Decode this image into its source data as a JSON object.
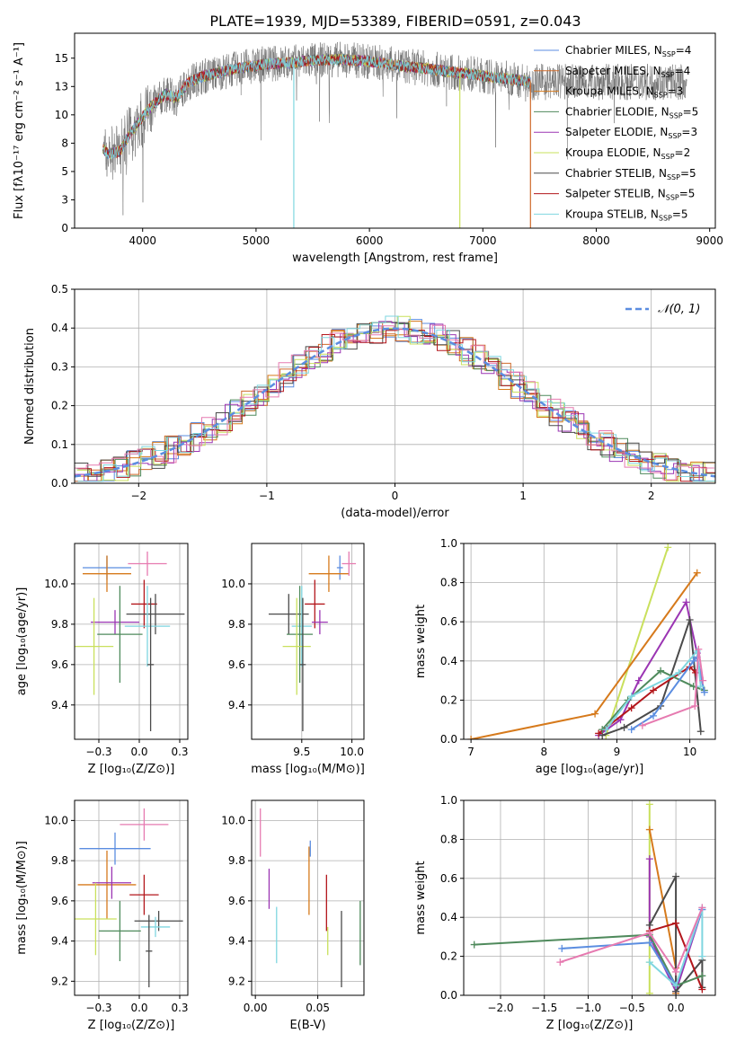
{
  "title": "PLATE=1939, MJD=53389, FIBERID=0591, z=0.043",
  "colors": {
    "Chabrier MILES": "#5b8de0",
    "Salpeter MILES": "#cf6a2a",
    "Kroupa MILES": "#d67a1c",
    "Chabrier ELODIE": "#4f8a5c",
    "Salpeter ELODIE": "#9b35b3",
    "Kroupa ELODIE": "#c9e05c",
    "Chabrier STELIB": "#4a4a4a",
    "Salpeter STELIB": "#b3161b",
    "Kroupa STELIB": "#7fd6e0",
    "pink": "#e67ab0",
    "gaussian": "#5b8de0"
  },
  "chart_data": [
    {
      "id": "spectrum",
      "type": "line",
      "xlabel": "wavelength [Angstrom, rest frame]",
      "ylabel": "Flux [fλ10⁻¹⁷ erg cm⁻² s⁻¹ A⁻¹]",
      "xlim": [
        3400,
        9050
      ],
      "ylim": [
        0,
        17.2
      ],
      "xticks": [
        4000,
        5000,
        6000,
        7000,
        8000,
        9000
      ],
      "yticks": [
        0.0,
        2.5,
        5.0,
        7.5,
        10.0,
        12.5,
        15.0
      ],
      "legend_position": "top-right",
      "legend": [
        {
          "label": "Chabrier MILES, N",
          "sub": "SSP",
          "tail": "=4",
          "color": "#5b8de0"
        },
        {
          "label": "Salpeter MILES, N",
          "sub": "SSP",
          "tail": "=4",
          "color": "#cf6a2a"
        },
        {
          "label": "Kroupa MILES, N",
          "sub": "SSP",
          "tail": "=3",
          "color": "#d67a1c"
        },
        {
          "label": "Chabrier ELODIE, N",
          "sub": "SSP",
          "tail": "=5",
          "color": "#4f8a5c"
        },
        {
          "label": "Salpeter ELODIE, N",
          "sub": "SSP",
          "tail": "=3",
          "color": "#9b35b3"
        },
        {
          "label": "Kroupa ELODIE, N",
          "sub": "SSP",
          "tail": "=2",
          "color": "#c9e05c"
        },
        {
          "label": "Chabrier STELIB, N",
          "sub": "SSP",
          "tail": "=5",
          "color": "#4a4a4a"
        },
        {
          "label": "Salpeter STELIB, N",
          "sub": "SSP",
          "tail": "=5",
          "color": "#b3161b"
        },
        {
          "label": "Kroupa STELIB, N",
          "sub": "SSP",
          "tail": "=5",
          "color": "#7fd6e0"
        }
      ],
      "continuum": {
        "x": [
          3650,
          3700,
          3800,
          3900,
          4000,
          4100,
          4200,
          4300,
          4400,
          4500,
          4700,
          4900,
          5100,
          5300,
          5500,
          5700,
          5900,
          6100,
          6300,
          6500,
          6700,
          6900,
          7100,
          7300,
          7420
        ],
        "y": [
          7.0,
          6.5,
          6.8,
          8.5,
          9.8,
          11.0,
          11.8,
          11.5,
          12.8,
          13.3,
          13.8,
          14.2,
          14.5,
          14.6,
          14.8,
          14.9,
          14.8,
          14.6,
          14.3,
          14.1,
          13.8,
          13.6,
          13.3,
          13.1,
          12.9
        ]
      },
      "data_range": [
        3650,
        8800
      ],
      "model_range": [
        3650,
        7420
      ],
      "spikes": [
        {
          "x": 5333,
          "color": "#7fd6e0",
          "ymin": 0
        },
        {
          "x": 6797,
          "color": "#c9e05c",
          "ymin": 0
        },
        {
          "x": 7420,
          "color": "#cf6a2a",
          "ymin": 0
        }
      ]
    },
    {
      "id": "residuals",
      "type": "histogram",
      "xlabel": "(data-model)/error",
      "ylabel": "Normed distribution",
      "xlim": [
        -2.5,
        2.5
      ],
      "ylim": [
        0,
        0.5
      ],
      "xticks": [
        -2,
        -1,
        0,
        1,
        2
      ],
      "yticks": [
        0.0,
        0.1,
        0.2,
        0.3,
        0.4,
        0.5
      ],
      "bins": 50,
      "gaussian": {
        "label": "𝒩(0, 1)",
        "mu": 0,
        "sigma": 1
      },
      "legend_position": "top-right"
    },
    {
      "id": "age-vs-Z",
      "type": "errorbar",
      "xlabel": "Z [log₁₀(Z/Z⊙)]",
      "ylabel": "age  [log₁₀(age/yr)]",
      "xlim": [
        -0.4,
        0.3
      ],
      "ylim": [
        9.23,
        10.2
      ],
      "xticks": [
        -0.25,
        0.0,
        0.25
      ],
      "yticks": [
        9.4,
        9.6,
        9.8,
        10.0
      ],
      "points": [
        {
          "x": -0.2,
          "y": 10.08,
          "xerr": 0.15,
          "yerr": 0.06,
          "color": "#5b8de0"
        },
        {
          "x": -0.2,
          "y": 10.05,
          "xerr": 0.15,
          "yerr": 0.09,
          "color": "#d67a1c"
        },
        {
          "x": 0.05,
          "y": 10.1,
          "xerr": 0.12,
          "yerr": 0.06,
          "color": "#e67ab0"
        },
        {
          "x": 0.03,
          "y": 9.9,
          "xerr": 0.08,
          "yerr": 0.12,
          "color": "#b3161b"
        },
        {
          "x": 0.1,
          "y": 9.85,
          "xerr": 0.18,
          "yerr": 0.1,
          "color": "#4a4a4a"
        },
        {
          "x": -0.15,
          "y": 9.81,
          "xerr": 0.15,
          "yerr": 0.06,
          "color": "#9b35b3"
        },
        {
          "x": 0.05,
          "y": 9.79,
          "xerr": 0.14,
          "yerr": 0.2,
          "color": "#7fd6e0"
        },
        {
          "x": -0.12,
          "y": 9.75,
          "xerr": 0.14,
          "yerr": 0.24,
          "color": "#4f8a5c"
        },
        {
          "x": -0.28,
          "y": 9.69,
          "xerr": 0.12,
          "yerr": 0.24,
          "color": "#c9e05c"
        },
        {
          "x": 0.07,
          "y": 9.6,
          "xerr": 0.02,
          "yerr": 0.33,
          "color": "#4a4a4a"
        }
      ]
    },
    {
      "id": "age-vs-mass",
      "type": "errorbar",
      "xlabel": "mass [log₁₀(M/M⊙)]",
      "xlim": [
        9.0,
        10.12
      ],
      "ylim": [
        9.23,
        10.2
      ],
      "xticks": [
        9.5,
        10.0
      ],
      "yticks": [
        9.4,
        9.6,
        9.8,
        10.0
      ],
      "points": [
        {
          "x": 9.88,
          "y": 10.08,
          "xerr": 0.03,
          "yerr": 0.06,
          "color": "#5b8de0"
        },
        {
          "x": 9.77,
          "y": 10.05,
          "xerr": 0.2,
          "yerr": 0.09,
          "color": "#d67a1c"
        },
        {
          "x": 9.97,
          "y": 10.1,
          "xerr": 0.07,
          "yerr": 0.06,
          "color": "#e67ab0"
        },
        {
          "x": 9.63,
          "y": 9.9,
          "xerr": 0.1,
          "yerr": 0.12,
          "color": "#b3161b"
        },
        {
          "x": 9.37,
          "y": 9.85,
          "xerr": 0.2,
          "yerr": 0.1,
          "color": "#4a4a4a"
        },
        {
          "x": 9.68,
          "y": 9.81,
          "xerr": 0.08,
          "yerr": 0.06,
          "color": "#9b35b3"
        },
        {
          "x": 9.5,
          "y": 9.79,
          "xerr": 0.1,
          "yerr": 0.2,
          "color": "#7fd6e0"
        },
        {
          "x": 9.48,
          "y": 9.75,
          "xerr": 0.13,
          "yerr": 0.24,
          "color": "#4f8a5c"
        },
        {
          "x": 9.45,
          "y": 9.69,
          "xerr": 0.14,
          "yerr": 0.24,
          "color": "#c9e05c"
        },
        {
          "x": 9.51,
          "y": 9.6,
          "xerr": 0.03,
          "yerr": 0.33,
          "color": "#4a4a4a"
        }
      ]
    },
    {
      "id": "weight-vs-age",
      "type": "line",
      "xlabel": "age  [log₁₀(age/yr)]",
      "ylabel": "mass weight",
      "xlim": [
        6.9,
        10.35
      ],
      "ylim": [
        0,
        1
      ],
      "xticks": [
        7,
        8,
        9,
        10
      ],
      "yticks": [
        0.0,
        0.2,
        0.4,
        0.6,
        0.8,
        1.0
      ],
      "series": [
        {
          "color": "#c9e05c",
          "x": [
            8.85,
            9.7
          ],
          "y": [
            0.02,
            0.98
          ]
        },
        {
          "color": "#d67a1c",
          "x": [
            7.0,
            8.7,
            10.1
          ],
          "y": [
            0.0,
            0.13,
            0.85
          ]
        },
        {
          "color": "#9b35b3",
          "x": [
            8.75,
            9.05,
            9.3,
            9.95,
            10.1
          ],
          "y": [
            0.02,
            0.1,
            0.3,
            0.7,
            0.44
          ]
        },
        {
          "color": "#4a4a4a",
          "x": [
            8.8,
            9.1,
            9.6,
            10.0,
            10.15
          ],
          "y": [
            0.02,
            0.06,
            0.17,
            0.61,
            0.04
          ]
        },
        {
          "color": "#b3161b",
          "x": [
            8.75,
            9.2,
            9.5,
            10.0,
            10.08
          ],
          "y": [
            0.03,
            0.16,
            0.25,
            0.37,
            0.34
          ]
        },
        {
          "color": "#4f8a5c",
          "x": [
            8.8,
            9.15,
            9.6,
            10.05,
            10.2
          ],
          "y": [
            0.05,
            0.2,
            0.35,
            0.27,
            0.25
          ]
        },
        {
          "color": "#5b8de0",
          "x": [
            9.2,
            9.5,
            10.05,
            10.1,
            10.2
          ],
          "y": [
            0.05,
            0.12,
            0.4,
            0.42,
            0.24
          ]
        },
        {
          "color": "#7fd6e0",
          "x": [
            8.85,
            9.2,
            9.85,
            10.1,
            10.15
          ],
          "y": [
            0.05,
            0.22,
            0.34,
            0.45,
            0.27
          ]
        },
        {
          "color": "#e67ab0",
          "x": [
            9.35,
            10.07,
            10.12,
            10.18
          ],
          "y": [
            0.07,
            0.17,
            0.46,
            0.3
          ]
        }
      ]
    },
    {
      "id": "mass-vs-Z",
      "type": "errorbar",
      "xlabel": "Z [log₁₀(Z/Z⊙)]",
      "ylabel": "mass [log₁₀(M/M⊙)]",
      "xlim": [
        -0.4,
        0.3
      ],
      "ylim": [
        9.13,
        10.1
      ],
      "xticks": [
        -0.25,
        0.0,
        0.25
      ],
      "yticks": [
        9.2,
        9.4,
        9.6,
        9.8,
        10.0
      ],
      "points": [
        {
          "x": 0.03,
          "y": 9.98,
          "xerr": 0.15,
          "yerr": 0.08,
          "color": "#e67ab0"
        },
        {
          "x": -0.15,
          "y": 9.86,
          "xerr": 0.22,
          "yerr": 0.08,
          "color": "#5b8de0"
        },
        {
          "x": -0.2,
          "y": 9.68,
          "xerr": 0.18,
          "yerr": 0.17,
          "color": "#d67a1c"
        },
        {
          "x": -0.17,
          "y": 9.69,
          "xerr": 0.12,
          "yerr": 0.08,
          "color": "#9b35b3"
        },
        {
          "x": 0.03,
          "y": 9.63,
          "xerr": 0.09,
          "yerr": 0.1,
          "color": "#b3161b"
        },
        {
          "x": -0.27,
          "y": 9.51,
          "xerr": 0.13,
          "yerr": 0.18,
          "color": "#c9e05c"
        },
        {
          "x": 0.12,
          "y": 9.5,
          "xerr": 0.15,
          "yerr": 0.05,
          "color": "#4a4a4a"
        },
        {
          "x": 0.1,
          "y": 9.47,
          "xerr": 0.09,
          "yerr": 0.05,
          "color": "#7fd6e0"
        },
        {
          "x": -0.12,
          "y": 9.45,
          "xerr": 0.13,
          "yerr": 0.15,
          "color": "#4f8a5c"
        },
        {
          "x": 0.06,
          "y": 9.35,
          "xerr": 0.02,
          "yerr": 0.18,
          "color": "#4a4a4a"
        }
      ]
    },
    {
      "id": "mass-vs-EBV",
      "type": "errorbar",
      "xlabel": "E(B-V)",
      "xlim": [
        -0.003,
        0.087
      ],
      "ylim": [
        9.13,
        10.1
      ],
      "xticks": [
        0.0,
        0.05
      ],
      "yticks": [
        9.2,
        9.4,
        9.6,
        9.8,
        10.0
      ],
      "points": [
        {
          "x": 0.004,
          "y": 9.94,
          "yerr": 0.12,
          "color": "#e67ab0"
        },
        {
          "x": 0.011,
          "y": 9.66,
          "yerr": 0.1,
          "color": "#9b35b3"
        },
        {
          "x": 0.017,
          "y": 9.43,
          "yerr": 0.14,
          "color": "#7fd6e0"
        },
        {
          "x": 0.043,
          "y": 9.7,
          "yerr": 0.17,
          "color": "#d67a1c"
        },
        {
          "x": 0.044,
          "y": 9.86,
          "yerr": 0.04,
          "color": "#5b8de0"
        },
        {
          "x": 0.057,
          "y": 9.59,
          "yerr": 0.14,
          "color": "#b3161b"
        },
        {
          "x": 0.058,
          "y": 9.4,
          "yerr": 0.07,
          "color": "#c9e05c"
        },
        {
          "x": 0.069,
          "y": 9.36,
          "yerr": 0.19,
          "color": "#4a4a4a"
        },
        {
          "x": 0.084,
          "y": 9.44,
          "yerr": 0.16,
          "color": "#4f8a5c"
        }
      ]
    },
    {
      "id": "weight-vs-Z",
      "type": "line",
      "xlabel": "Z [log₁₀(Z/Z⊙)]",
      "ylabel": "mass weight",
      "xlim": [
        -2.42,
        0.45
      ],
      "ylim": [
        0,
        1
      ],
      "xticks": [
        -2.0,
        -1.5,
        -1.0,
        -0.5,
        0.0
      ],
      "yticks": [
        0.0,
        0.2,
        0.4,
        0.6,
        0.8,
        1.0
      ],
      "series": [
        {
          "color": "#c9e05c",
          "x": [
            -0.3,
            -0.3,
            -0.3
          ],
          "y": [
            0.98,
            0.17,
            0.01
          ]
        },
        {
          "color": "#d67a1c",
          "x": [
            -0.3,
            0.0,
            0.0
          ],
          "y": [
            0.85,
            0.14,
            0.01
          ]
        },
        {
          "color": "#9b35b3",
          "x": [
            -0.3,
            -0.3,
            0.0,
            0.3
          ],
          "y": [
            0.7,
            0.3,
            0.02,
            0.44
          ]
        },
        {
          "color": "#4a4a4a",
          "x": [
            -0.3,
            0.0,
            0.0,
            0.3,
            0.3
          ],
          "y": [
            0.36,
            0.61,
            0.02,
            0.18,
            0.04
          ]
        },
        {
          "color": "#b3161b",
          "x": [
            -0.3,
            0.0,
            0.3
          ],
          "y": [
            0.33,
            0.37,
            0.03
          ]
        },
        {
          "color": "#4f8a5c",
          "x": [
            -2.3,
            -0.3,
            0.0,
            0.3
          ],
          "y": [
            0.26,
            0.31,
            0.05,
            0.1
          ]
        },
        {
          "color": "#5b8de0",
          "x": [
            -1.3,
            -0.3,
            0.0,
            0.3
          ],
          "y": [
            0.24,
            0.27,
            0.05,
            0.44
          ]
        },
        {
          "color": "#7fd6e0",
          "x": [
            -0.3,
            0.0,
            0.3,
            0.3
          ],
          "y": [
            0.17,
            0.05,
            0.45,
            0.2
          ]
        },
        {
          "color": "#e67ab0",
          "x": [
            -1.32,
            -0.3,
            0.0,
            0.3
          ],
          "y": [
            0.17,
            0.32,
            0.12,
            0.45
          ]
        }
      ]
    }
  ]
}
